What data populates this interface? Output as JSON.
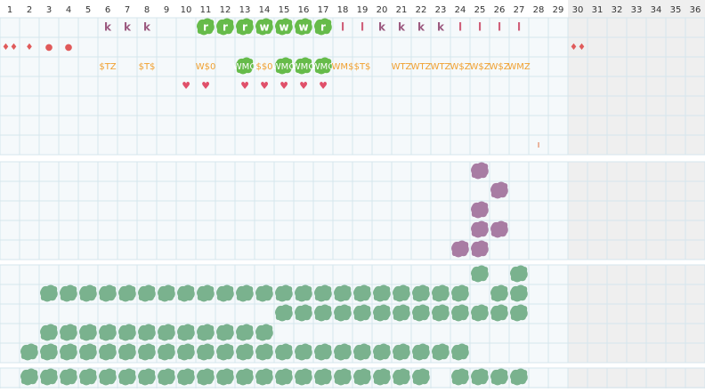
{
  "columns": [
    "1",
    "2",
    "3",
    "4",
    "5",
    "6",
    "7",
    "8",
    "9",
    "10",
    "11",
    "12",
    "13",
    "14",
    "15",
    "16",
    "17",
    "18",
    "19",
    "20",
    "21",
    "22",
    "23",
    "24",
    "25",
    "26",
    "27",
    "28",
    "29",
    "30",
    "31",
    "32",
    "33",
    "34",
    "35",
    "36"
  ],
  "rows": {
    "letters": {
      "6": "k",
      "7": "k",
      "8": "k",
      "11": "r",
      "12": "r",
      "13": "r",
      "14": "w",
      "15": "w",
      "16": "w",
      "17": "r",
      "18": "l",
      "19": "l",
      "20": "k",
      "21": "k",
      "22": "k",
      "23": "k",
      "24": "l",
      "25": "l",
      "26": "l",
      "27": "l"
    },
    "drops": {
      "1": "♦♦",
      "2": "♦",
      "3": "●",
      "4": "●",
      "30": "♦♦"
    },
    "codes": {
      "6": "$TZ",
      "8": "$T$",
      "11": "W$0",
      "13": "WMO",
      "14": "$$0",
      "15": "WMO",
      "16": "WMO",
      "17": "WMO",
      "18": "WM$",
      "19": "$T$",
      "21": "WTZ",
      "22": "WTZ",
      "23": "WTZ",
      "24": "W$Z",
      "25": "W$Z",
      "26": "W$Z",
      "27": "WMZ"
    },
    "hearts": {
      "10": "♥",
      "11": "♥",
      "13": "♥",
      "14": "♥",
      "15": "♥",
      "16": "♥",
      "17": "♥"
    },
    "ticks": {
      "28": "ı"
    }
  }
}
